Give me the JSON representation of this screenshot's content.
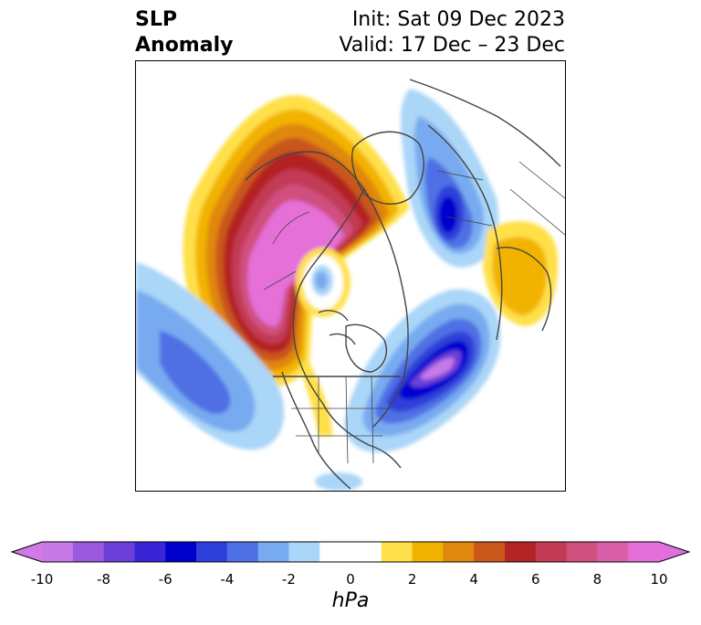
{
  "header": {
    "title_line1": "SLP",
    "title_line2": "Anomaly",
    "init": "Init: Sat 09 Dec 2023",
    "valid": "Valid: 17 Dec – 23 Dec"
  },
  "colorbar": {
    "units": "hPa",
    "tick_labels": [
      "-10",
      "-8",
      "-6",
      "-4",
      "-2",
      "0",
      "2",
      "4",
      "6",
      "8",
      "10"
    ],
    "min": -10,
    "max": 10,
    "extend": "both",
    "bins": [
      {
        "lo": -10,
        "hi": -9,
        "color": "#c77ae6"
      },
      {
        "lo": -9,
        "hi": -8,
        "color": "#9b59e0"
      },
      {
        "lo": -8,
        "hi": -7,
        "color": "#6b3fd8"
      },
      {
        "lo": -7,
        "hi": -6,
        "color": "#3a25d6"
      },
      {
        "lo": -6,
        "hi": -5,
        "color": "#0000cd"
      },
      {
        "lo": -5,
        "hi": -4,
        "color": "#2e3fd9"
      },
      {
        "lo": -4,
        "hi": -3,
        "color": "#4f6fe4"
      },
      {
        "lo": -3,
        "hi": -2,
        "color": "#78aaf0"
      },
      {
        "lo": -2,
        "hi": -1,
        "color": "#aad6f8"
      },
      {
        "lo": -1,
        "hi": 1,
        "color": "#ffffff"
      },
      {
        "lo": 1,
        "hi": 2,
        "color": "#ffe04a"
      },
      {
        "lo": 2,
        "hi": 3,
        "color": "#f2b300"
      },
      {
        "lo": 3,
        "hi": 4,
        "color": "#e0870e"
      },
      {
        "lo": 4,
        "hi": 5,
        "color": "#c9571c"
      },
      {
        "lo": 5,
        "hi": 6,
        "color": "#b32424"
      },
      {
        "lo": 6,
        "hi": 7,
        "color": "#c23a55"
      },
      {
        "lo": 7,
        "hi": 8,
        "color": "#d0507e"
      },
      {
        "lo": 8,
        "hi": 9,
        "color": "#d960a8"
      },
      {
        "lo": 9,
        "hi": 10,
        "color": "#e46fd8"
      }
    ],
    "under_color": "#d07ae6",
    "over_color": "#e070dc"
  },
  "map": {
    "projection": "north-polar-stereographic",
    "coastline_color": "#444444"
  }
}
